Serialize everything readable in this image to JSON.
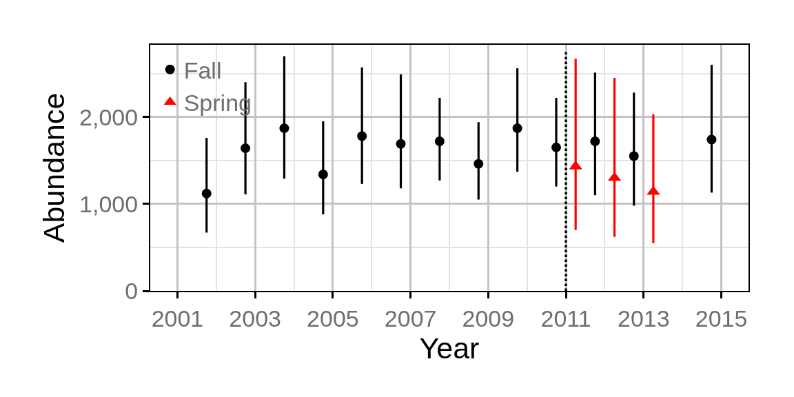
{
  "chart_data": {
    "type": "scatter",
    "xlabel": "Year",
    "ylabel": "Abundance",
    "xlim": [
      2000.3,
      2015.7
    ],
    "xticks": [
      2001,
      2003,
      2005,
      2007,
      2009,
      2011,
      2013,
      2015
    ],
    "ylim": [
      0,
      2830
    ],
    "yticks": [
      0,
      {
        "value": 1000,
        "label": "1,000"
      },
      {
        "value": 2000,
        "label": "2,000"
      }
    ],
    "grid": true,
    "legend": "top left",
    "series": [
      {
        "name": "Fall",
        "color": "#000000",
        "marker": "circle",
        "x": [
          2001.75,
          2002.75,
          2003.75,
          2004.75,
          2005.75,
          2006.75,
          2007.75,
          2008.75,
          2009.75,
          2010.75,
          2011.75,
          2012.75,
          2014.75
        ],
        "values": [
          1120,
          1640,
          1870,
          1340,
          1780,
          1690,
          1720,
          1460,
          1870,
          1650,
          1720,
          1550,
          1740
        ],
        "errors": [
          [
            670,
            1760
          ],
          [
            1110,
            2400
          ],
          [
            1290,
            2700
          ],
          [
            880,
            1950
          ],
          [
            1230,
            2570
          ],
          [
            1180,
            2490
          ],
          [
            1270,
            2220
          ],
          [
            1050,
            1940
          ],
          [
            1370,
            2560
          ],
          [
            1200,
            2220
          ],
          [
            1100,
            2510
          ],
          [
            980,
            2280
          ],
          [
            1130,
            2600
          ]
        ]
      },
      {
        "name": "Spring",
        "color": "#ff0000",
        "marker": "triangle",
        "x": [
          2011.25,
          2012.25,
          2013.25
        ],
        "values": [
          1430,
          1300,
          1140
        ],
        "errors": [
          [
            700,
            2670
          ],
          [
            620,
            2450
          ],
          [
            550,
            2030
          ]
        ]
      }
    ],
    "ref_lines": [
      {
        "axis": "x",
        "value": 2011,
        "color": "#000000",
        "line_style": "dotted"
      }
    ]
  }
}
